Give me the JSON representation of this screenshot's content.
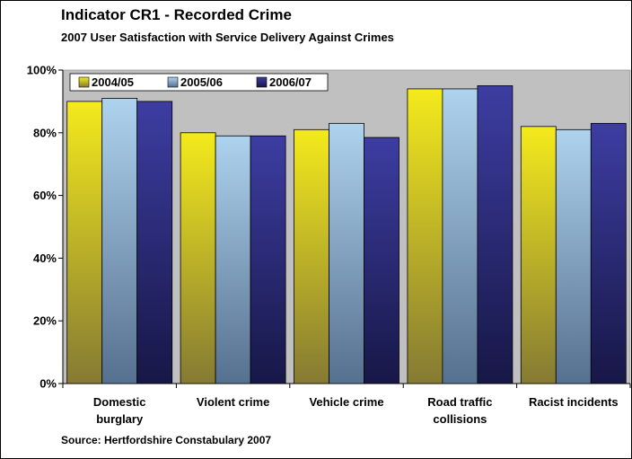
{
  "chart_data": {
    "type": "bar",
    "title": "Indicator CR1 - Recorded Crime",
    "subtitle": "2007 User Satisfaction with Service Delivery Against Crimes",
    "source": "Source: Hertfordshire Constabulary 2007",
    "categories": [
      [
        "Domestic",
        "burglary"
      ],
      [
        "Violent crime"
      ],
      [
        "Vehicle crime"
      ],
      [
        "Road traffic",
        "collisions"
      ],
      [
        "Racist incidents"
      ]
    ],
    "series": [
      {
        "name": "2004/05",
        "values": [
          90,
          80,
          81,
          94,
          82
        ],
        "colors": [
          "#f4ea1c",
          "#857a33"
        ]
      },
      {
        "name": "2005/06",
        "values": [
          91,
          79,
          83,
          94,
          81
        ],
        "colors": [
          "#aed3ee",
          "#56708f"
        ]
      },
      {
        "name": "2006/07",
        "values": [
          90,
          79,
          78.5,
          95,
          83
        ],
        "colors": [
          "#3d3da2",
          "#171747"
        ]
      }
    ],
    "ylim": [
      0,
      100
    ],
    "yticks": [
      "0%",
      "20%",
      "40%",
      "60%",
      "80%",
      "100%"
    ],
    "legend_position": "top-left",
    "plot_background": "#c0c0c0",
    "grid": false
  }
}
